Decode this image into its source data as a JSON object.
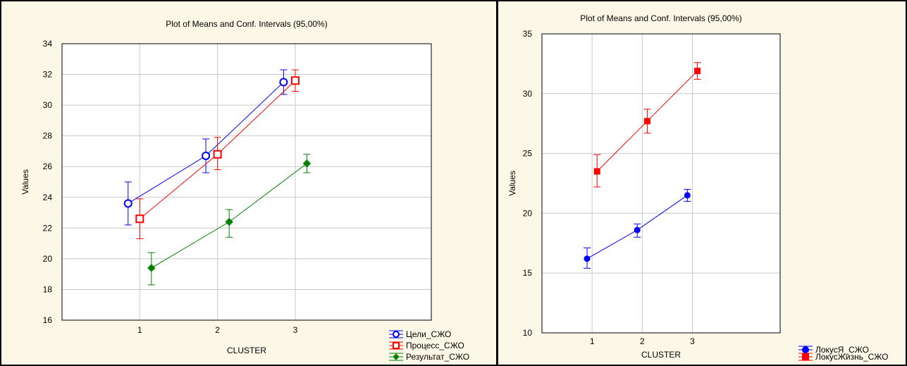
{
  "chart_data": [
    {
      "type": "line",
      "title": "Plot of Means and Conf. Intervals (95,00%)",
      "xlabel": "CLUSTER",
      "ylabel": "Values",
      "categories": [
        "1",
        "2",
        "3"
      ],
      "ylim": [
        16,
        34
      ],
      "yticks": [
        16,
        18,
        20,
        22,
        24,
        26,
        28,
        30,
        32,
        34
      ],
      "grid": true,
      "legend_position": "bottom-right-outside",
      "series": [
        {
          "name": "Цели_СЖО",
          "color": "#0000ff",
          "marker": "circle-open",
          "means": [
            23.6,
            26.7,
            31.5
          ],
          "lower": [
            22.2,
            25.6,
            30.7
          ],
          "upper": [
            25.0,
            27.8,
            32.3
          ],
          "offset": -0.15
        },
        {
          "name": "Процесс_СЖО",
          "color": "#ff0000",
          "marker": "square-open",
          "means": [
            22.6,
            26.8,
            31.6
          ],
          "lower": [
            21.3,
            25.8,
            30.9
          ],
          "upper": [
            23.9,
            27.9,
            32.3
          ],
          "offset": 0.0
        },
        {
          "name": "Результат_СЖО",
          "color": "#008000",
          "marker": "diamond-filled",
          "means": [
            19.4,
            22.4,
            26.2
          ],
          "lower": [
            18.3,
            21.4,
            25.6
          ],
          "upper": [
            20.4,
            23.2,
            26.8
          ],
          "offset": 0.15
        }
      ]
    },
    {
      "type": "line",
      "title": "Plot of Means and Conf. Intervals (95,00%)",
      "xlabel": "CLUSTER",
      "ylabel": "Values",
      "categories": [
        "1",
        "2",
        "3"
      ],
      "ylim": [
        10,
        35
      ],
      "yticks": [
        10,
        15,
        20,
        25,
        30,
        35
      ],
      "grid": true,
      "legend_position": "bottom-right-outside",
      "series": [
        {
          "name": "ЛокусЯ_СЖО",
          "color": "#0000ff",
          "marker": "circle-filled",
          "means": [
            16.2,
            18.6,
            21.5
          ],
          "lower": [
            15.4,
            18.0,
            21.0
          ],
          "upper": [
            17.1,
            19.1,
            22.0
          ],
          "offset": -0.1
        },
        {
          "name": "ЛокусЖизнь_СЖО",
          "color": "#ff0000",
          "marker": "square-filled",
          "means": [
            23.5,
            27.7,
            31.9
          ],
          "lower": [
            22.2,
            26.7,
            31.2
          ],
          "upper": [
            24.9,
            28.7,
            32.6
          ],
          "offset": 0.1
        }
      ]
    }
  ]
}
